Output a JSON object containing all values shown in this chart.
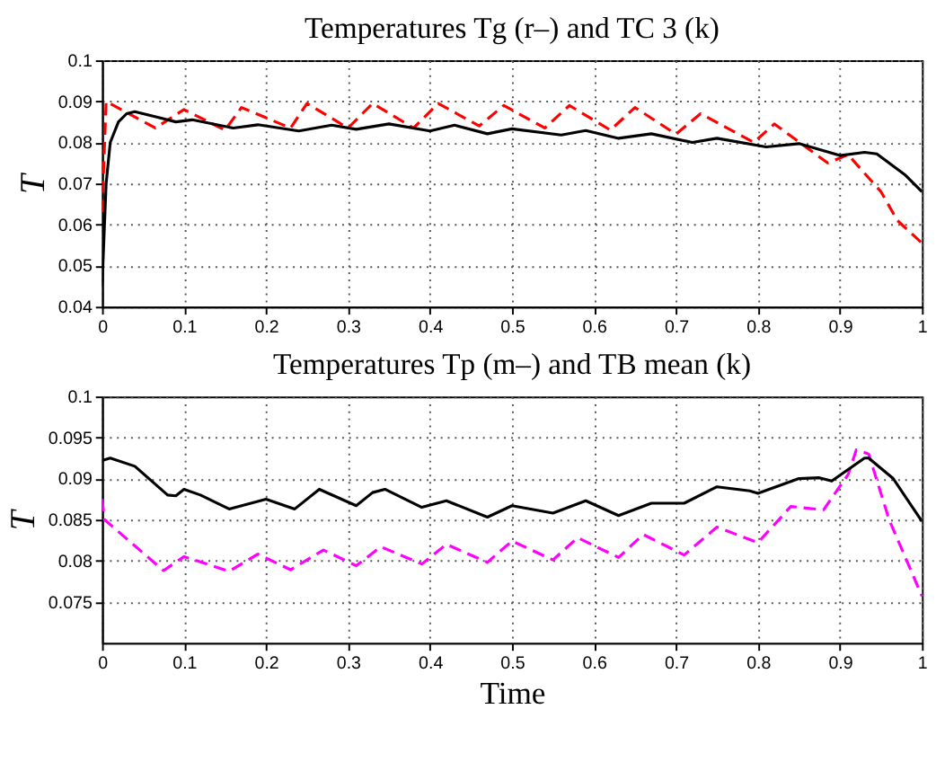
{
  "chart_data": [
    {
      "type": "line",
      "title": "Temperatures Tg (r–) and TC 3 (k)",
      "ylabel": "T",
      "xlim": [
        0,
        1
      ],
      "xticks": [
        0,
        0.1,
        0.2,
        0.3,
        0.4,
        0.5,
        0.6,
        0.7,
        0.8,
        0.9,
        1
      ],
      "ylim": [
        0.04,
        0.1
      ],
      "yticks": [
        0.04,
        0.05,
        0.06,
        0.07,
        0.08,
        0.09,
        0.1
      ],
      "grid": true,
      "series": [
        {
          "color": "#ff0000",
          "line_style": "dashed",
          "x": [
            0,
            0.005,
            0.065,
            0.1,
            0.15,
            0.17,
            0.23,
            0.25,
            0.3,
            0.33,
            0.38,
            0.41,
            0.46,
            0.49,
            0.54,
            0.57,
            0.62,
            0.65,
            0.7,
            0.73,
            0.795,
            0.82,
            0.885,
            0.91,
            0.95,
            0.97,
            1.0
          ],
          "values": [
            0.063,
            0.09,
            0.0835,
            0.088,
            0.083,
            0.0885,
            0.0835,
            0.0895,
            0.0835,
            0.0895,
            0.0835,
            0.0895,
            0.084,
            0.089,
            0.0835,
            0.089,
            0.083,
            0.0885,
            0.082,
            0.087,
            0.08,
            0.0845,
            0.075,
            0.077,
            0.068,
            0.061,
            0.0555
          ]
        },
        {
          "color": "#000000",
          "line_style": "solid",
          "x": [
            0,
            0.005,
            0.01,
            0.02,
            0.03,
            0.04,
            0.07,
            0.09,
            0.11,
            0.16,
            0.19,
            0.24,
            0.28,
            0.31,
            0.35,
            0.4,
            0.43,
            0.47,
            0.5,
            0.56,
            0.59,
            0.63,
            0.67,
            0.72,
            0.75,
            0.81,
            0.85,
            0.9,
            0.93,
            0.945,
            0.98,
            1.0
          ],
          "values": [
            0.045,
            0.07,
            0.08,
            0.085,
            0.087,
            0.0875,
            0.086,
            0.085,
            0.0855,
            0.0835,
            0.0843,
            0.0828,
            0.0842,
            0.0832,
            0.0845,
            0.0828,
            0.0842,
            0.0821,
            0.0833,
            0.0818,
            0.0829,
            0.081,
            0.0821,
            0.08,
            0.081,
            0.0789,
            0.0797,
            0.0768,
            0.0776,
            0.0772,
            0.072,
            0.068
          ]
        }
      ]
    },
    {
      "type": "line",
      "title": "Temperatures Tp (m–) and TB mean (k)",
      "xlabel": "Time",
      "ylabel": "T",
      "xlim": [
        0,
        1
      ],
      "xticks": [
        0,
        0.1,
        0.2,
        0.3,
        0.4,
        0.5,
        0.6,
        0.7,
        0.8,
        0.9,
        1
      ],
      "ylim": [
        0.07,
        0.1
      ],
      "yticks": [
        0.075,
        0.08,
        0.085,
        0.09,
        0.095,
        0.1
      ],
      "grid": true,
      "series": [
        {
          "color": "#ff00ff",
          "line_style": "dashed",
          "x": [
            0,
            0.003,
            0.075,
            0.1,
            0.155,
            0.19,
            0.23,
            0.27,
            0.31,
            0.34,
            0.39,
            0.42,
            0.47,
            0.5,
            0.55,
            0.58,
            0.63,
            0.66,
            0.71,
            0.75,
            0.8,
            0.84,
            0.88,
            0.91,
            0.92,
            0.935,
            0.96,
            1.0
          ],
          "values": [
            0.0875,
            0.085,
            0.0788,
            0.0805,
            0.0787,
            0.0808,
            0.0789,
            0.0813,
            0.0794,
            0.0817,
            0.0796,
            0.082,
            0.0798,
            0.0824,
            0.0801,
            0.0828,
            0.0804,
            0.0832,
            0.0807,
            0.0841,
            0.0822,
            0.0866,
            0.0862,
            0.0905,
            0.0935,
            0.093,
            0.085,
            0.0757
          ]
        },
        {
          "color": "#000000",
          "line_style": "solid",
          "x": [
            0,
            0.01,
            0.04,
            0.08,
            0.09,
            0.1,
            0.12,
            0.155,
            0.2,
            0.235,
            0.265,
            0.31,
            0.33,
            0.345,
            0.39,
            0.42,
            0.47,
            0.5,
            0.55,
            0.59,
            0.63,
            0.67,
            0.71,
            0.75,
            0.79,
            0.8,
            0.85,
            0.875,
            0.89,
            0.93,
            0.935,
            0.965,
            1.0
          ],
          "values": [
            0.0922,
            0.0925,
            0.0915,
            0.088,
            0.0879,
            0.0887,
            0.088,
            0.0863,
            0.0875,
            0.0863,
            0.0887,
            0.0867,
            0.0883,
            0.0887,
            0.0865,
            0.0873,
            0.0853,
            0.0867,
            0.0858,
            0.0873,
            0.0855,
            0.087,
            0.087,
            0.089,
            0.0885,
            0.0882,
            0.09,
            0.0901,
            0.0897,
            0.0925,
            0.0925,
            0.09,
            0.0848
          ]
        }
      ]
    }
  ]
}
